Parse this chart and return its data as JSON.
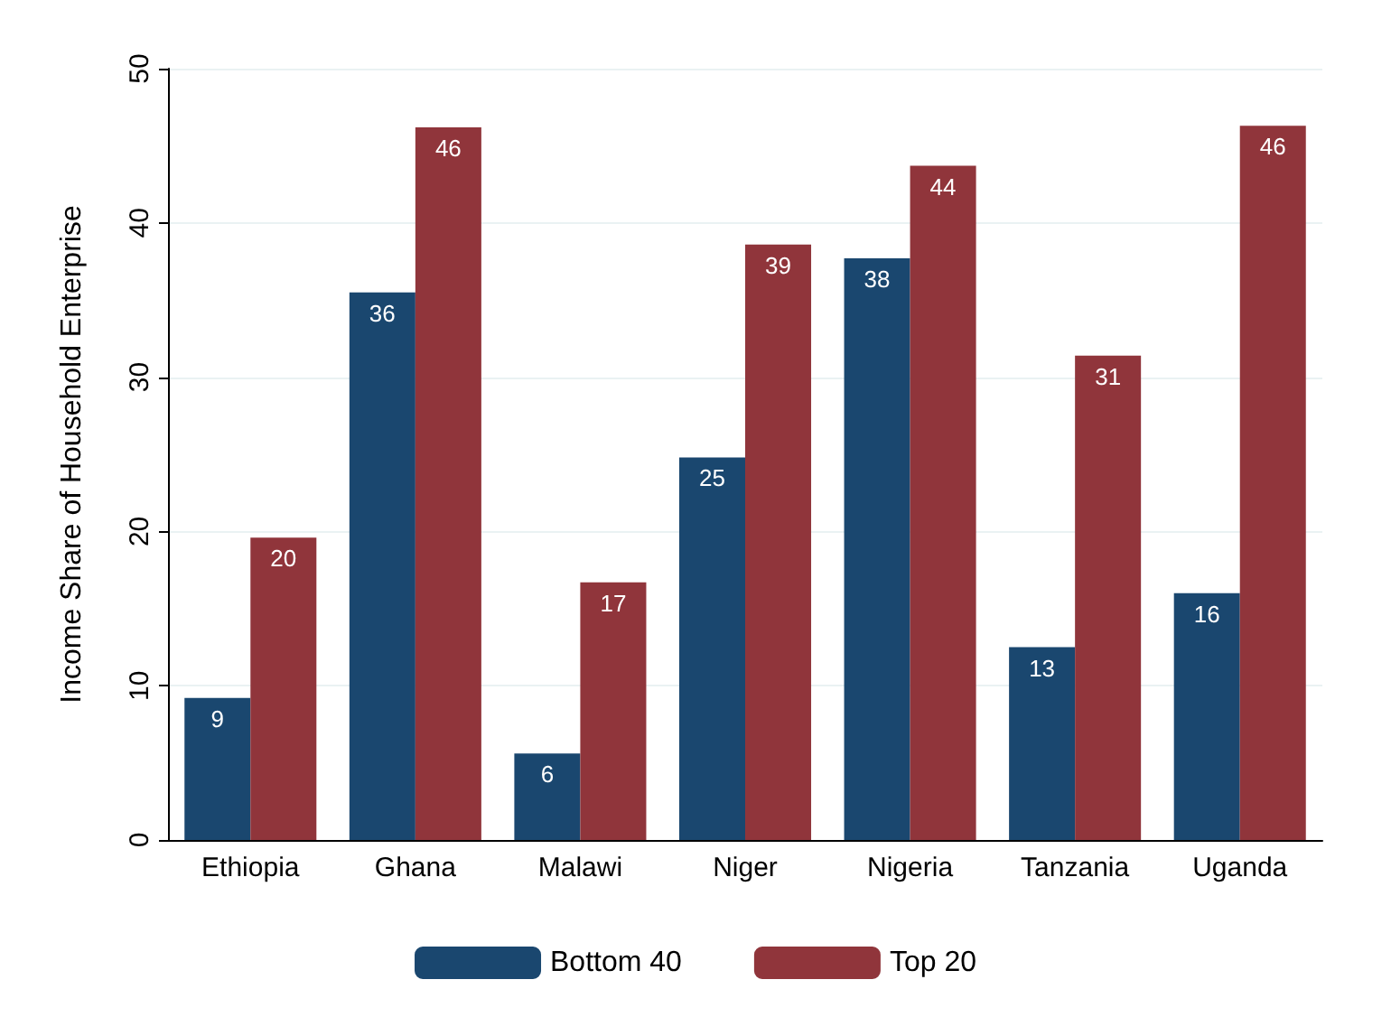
{
  "chart_data": {
    "type": "bar",
    "ylabel": "Income Share of Household Enterprise",
    "categories": [
      "Ethiopia",
      "Ghana",
      "Malawi",
      "Niger",
      "Nigeria",
      "Tanzania",
      "Uganda"
    ],
    "series": [
      {
        "name": "Bottom 40",
        "color": "#1a476f",
        "values": [
          9.2,
          35.5,
          5.6,
          24.8,
          37.7,
          12.5,
          16.0
        ],
        "value_labels": [
          "9",
          "36",
          "6",
          "25",
          "38",
          "13",
          "16"
        ]
      },
      {
        "name": "Top 20",
        "color": "#90353b",
        "values": [
          19.6,
          46.2,
          16.7,
          38.6,
          43.7,
          31.4,
          46.3
        ],
        "value_labels": [
          "20",
          "46",
          "17",
          "39",
          "44",
          "31",
          "46"
        ]
      }
    ],
    "ylim": [
      0,
      50
    ],
    "yticks": [
      0,
      10,
      20,
      30,
      40,
      50
    ],
    "grid": "y",
    "legend": "bottom"
  }
}
